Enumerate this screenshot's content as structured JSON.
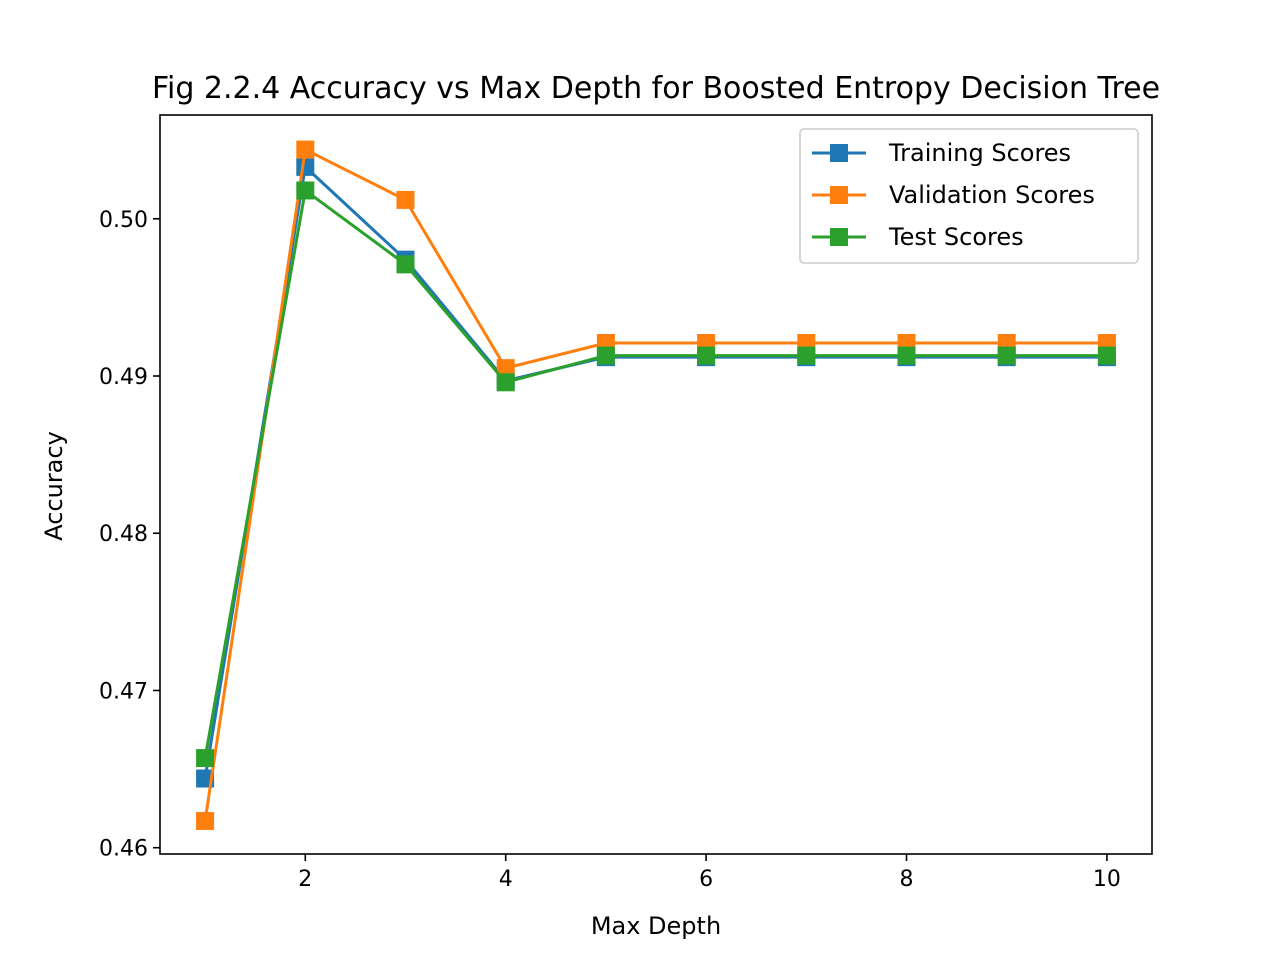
{
  "chart_data": {
    "type": "line",
    "title": "Fig 2.2.4 Accuracy vs Max Depth for Boosted Entropy Decision Tree",
    "xlabel": "Max Depth",
    "ylabel": "Accuracy",
    "x": [
      1,
      2,
      3,
      4,
      5,
      6,
      7,
      8,
      9,
      10
    ],
    "xlim": [
      0.55,
      10.45
    ],
    "ylim": [
      0.4596,
      0.5066
    ],
    "xticks": [
      2,
      4,
      6,
      8,
      10
    ],
    "xtick_labels": [
      "2",
      "4",
      "6",
      "8",
      "10"
    ],
    "yticks": [
      0.46,
      0.47,
      0.48,
      0.49,
      0.5
    ],
    "ytick_labels": [
      "0.46",
      "0.47",
      "0.48",
      "0.49",
      "0.50"
    ],
    "grid": false,
    "legend_position": "top-right",
    "marker": "square",
    "series": [
      {
        "name": "Training Scores",
        "color": "#1f77b4",
        "values": [
          0.4644,
          0.5033,
          0.4974,
          0.4897,
          0.4912,
          0.4912,
          0.4912,
          0.4912,
          0.4912,
          0.4912
        ]
      },
      {
        "name": "Validation Scores",
        "color": "#ff7f0e",
        "values": [
          0.4617,
          0.5044,
          0.5012,
          0.4905,
          0.4921,
          0.4921,
          0.4921,
          0.4921,
          0.4921,
          0.4921
        ]
      },
      {
        "name": "Test Scores",
        "color": "#2ca02c",
        "values": [
          0.4657,
          0.5018,
          0.4971,
          0.4896,
          0.4913,
          0.4913,
          0.4913,
          0.4913,
          0.4913,
          0.4913
        ]
      }
    ]
  }
}
